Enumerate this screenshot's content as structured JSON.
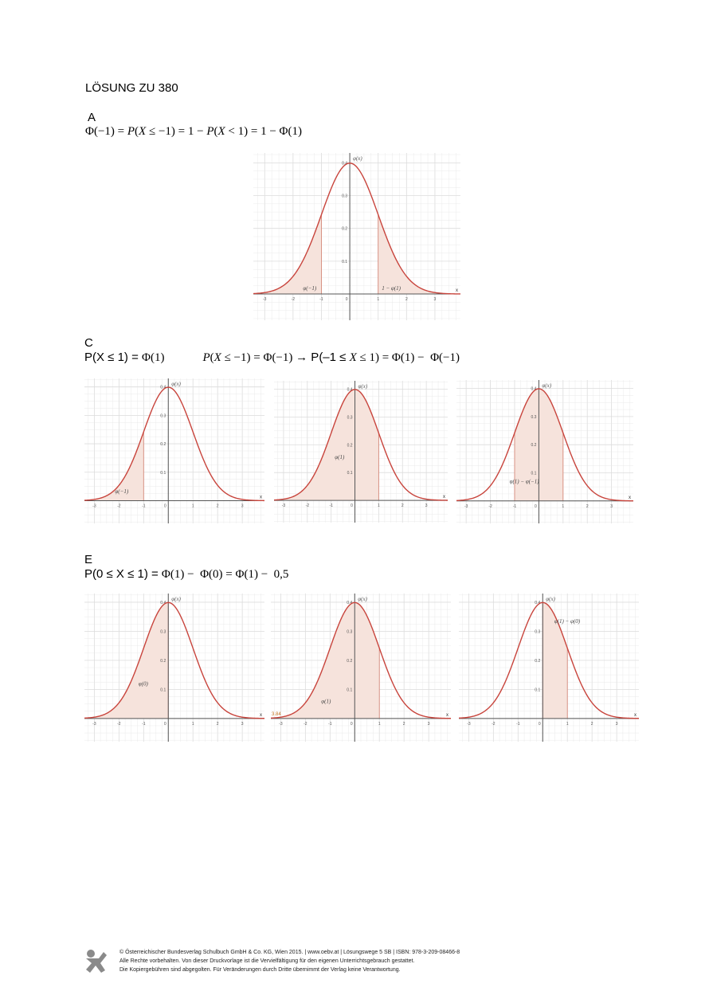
{
  "title": "LÖSUNG ZU 380",
  "sections": {
    "A": {
      "label": "A",
      "formula": {
        "p1": "Φ(−1) = ",
        "p2": "P",
        "p3": "(",
        "p4": "X",
        "p5": " ≤ −1) = 1 − ",
        "p6": "P",
        "p7": "(",
        "p8": "X",
        "p9": " < 1) = 1 − Φ(1)"
      }
    },
    "C": {
      "label": "C",
      "formula": {
        "p1": "P(X ≤ 1) = ",
        "p2": "Φ(1)",
        "p3": "P",
        "p4": "(",
        "p5": "X",
        "p6": " ≤ −1) = Φ(−1) ",
        "arrow": "→",
        "p7": " P(–1 ≤ ",
        "p8": "X",
        "p9": " ≤ 1) = ",
        "p10": "Φ(1) −  Φ(−1)"
      }
    },
    "E": {
      "label": "E",
      "formula": {
        "p1": "P(0 ≤ X ≤ 1) = ",
        "p2": "Φ(1) −  Φ(0) = Φ(1) −  0,5"
      }
    }
  },
  "plot_text": {
    "ylabel": "φ(x)",
    "xlabel": "x",
    "x_ticks": [
      "-3",
      "-2",
      "-1",
      "0",
      "1",
      "2",
      "3"
    ],
    "y_ticks": [
      "0.1",
      "0.2",
      "0.3",
      "0.4"
    ],
    "extra_label": "3.84"
  },
  "chart_data": [
    {
      "type": "area",
      "id": "A",
      "function": "standard normal density φ(x)",
      "x_range": [
        -3.4,
        3.9
      ],
      "y_range": [
        -0.08,
        0.43
      ],
      "shaded": [
        [
          -3.4,
          -1
        ],
        [
          1,
          3.9
        ]
      ],
      "annotations": [
        "φ(−1)",
        "1 − φ(1)"
      ]
    },
    {
      "type": "area",
      "id": "C1",
      "function": "standard normal density φ(x)",
      "x_range": [
        -3.4,
        3.9
      ],
      "y_range": [
        -0.08,
        0.43
      ],
      "shaded": [
        [
          -3.4,
          -1
        ]
      ],
      "annotations": [
        "φ(−1)"
      ]
    },
    {
      "type": "area",
      "id": "C2",
      "function": "standard normal density φ(x)",
      "x_range": [
        -3.4,
        3.9
      ],
      "y_range": [
        -0.08,
        0.43
      ],
      "shaded": [
        [
          -3.4,
          1
        ]
      ],
      "annotations": [
        "φ(1)"
      ]
    },
    {
      "type": "area",
      "id": "C3",
      "function": "standard normal density φ(x)",
      "x_range": [
        -3.4,
        3.9
      ],
      "y_range": [
        -0.08,
        0.43
      ],
      "shaded": [
        [
          -1,
          1
        ]
      ],
      "annotations": [
        "φ(1) − φ(−1)"
      ]
    },
    {
      "type": "area",
      "id": "E1",
      "function": "standard normal density φ(x)",
      "x_range": [
        -3.4,
        3.9
      ],
      "y_range": [
        -0.08,
        0.43
      ],
      "shaded": [
        [
          -3.4,
          0
        ]
      ],
      "annotations": [
        "φ(0)"
      ]
    },
    {
      "type": "area",
      "id": "E2",
      "function": "standard normal density φ(x)",
      "x_range": [
        -3.4,
        3.9
      ],
      "y_range": [
        -0.08,
        0.43
      ],
      "shaded": [
        [
          -3.4,
          1
        ]
      ],
      "annotations": [
        "φ(1)"
      ]
    },
    {
      "type": "area",
      "id": "E3",
      "function": "standard normal density φ(x)",
      "x_range": [
        -3.4,
        3.9
      ],
      "y_range": [
        -0.08,
        0.43
      ],
      "shaded": [
        [
          0,
          1
        ]
      ],
      "annotations": [
        "φ(1) − φ(0)"
      ]
    }
  ],
  "colors": {
    "curve": "#c8443c",
    "fill": "#f6e3dc",
    "shade_edge": "#d6897a",
    "grid": "#e6e6e6",
    "axis": "#555555"
  },
  "footer": {
    "line1": "© Österreichischer Bundesverlag Schulbuch GmbH & Co. KG, Wien 2015. | www.oebv.at | Lösungswege 5 SB | ISBN: 978-3-209-08466-8",
    "line2": "Alle Rechte vorbehalten. Von dieser Druckvorlage ist die Vervielfältigung für den eigenen Unterrichtsgebrauch gestattet.",
    "line3": "Die Kopiergebühren sind abgegolten. Für Veränderungen durch Dritte übernimmt der Verlag keine Verantwortung."
  }
}
